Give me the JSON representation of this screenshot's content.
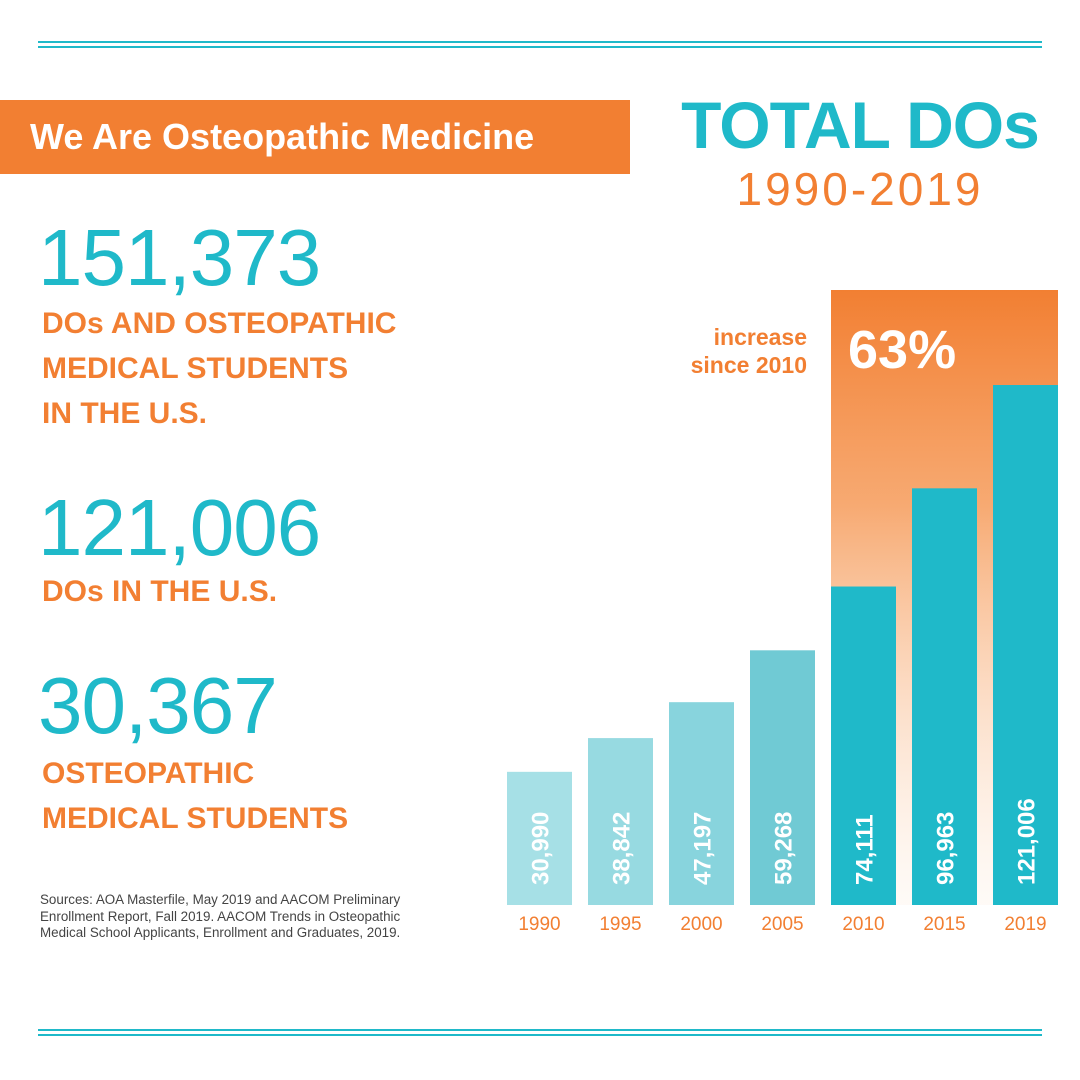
{
  "banner": {
    "text": "We Are Osteopathic Medicine"
  },
  "stats": [
    {
      "value": "151,373",
      "label": "DOs AND OSTEOPATHIC\nMEDICAL STUDENTS\nIN THE U.S."
    },
    {
      "value": "121,006",
      "label": "DOs IN THE U.S."
    },
    {
      "value": "30,367",
      "label": "OSTEOPATHIC\nMEDICAL STUDENTS"
    }
  ],
  "sources": "Sources: AOA Masterfile, May 2019 and AACOM Preliminary Enrollment Report, Fall 2019. AACOM Trends in Osteopathic Medical School Applicants, Enrollment and Graduates, 2019.",
  "colors": {
    "teal": "#1fb9c9",
    "orange": "#f27f32"
  },
  "chart_data": {
    "type": "bar",
    "title": "TOTAL DOs",
    "subtitle": "1990-2019",
    "categories": [
      "1990",
      "1995",
      "2000",
      "2005",
      "2010",
      "2015",
      "2019"
    ],
    "values": [
      30990,
      38842,
      47197,
      59268,
      74111,
      96963,
      121006
    ],
    "value_labels": [
      "30,990",
      "38,842",
      "47,197",
      "59,268",
      "74,111",
      "96,963",
      "121,006"
    ],
    "bar_colors": [
      "#a6e0e6",
      "#97dae1",
      "#88d4dd",
      "#70cad4",
      "#1fb9c9",
      "#1fb9c9",
      "#1fb9c9"
    ],
    "ylim": [
      0,
      121006
    ],
    "annotation": {
      "text_line1": "increase",
      "text_line2": "since 2010",
      "value": "63%",
      "from_category": "2010",
      "color": "#f27f32"
    }
  }
}
